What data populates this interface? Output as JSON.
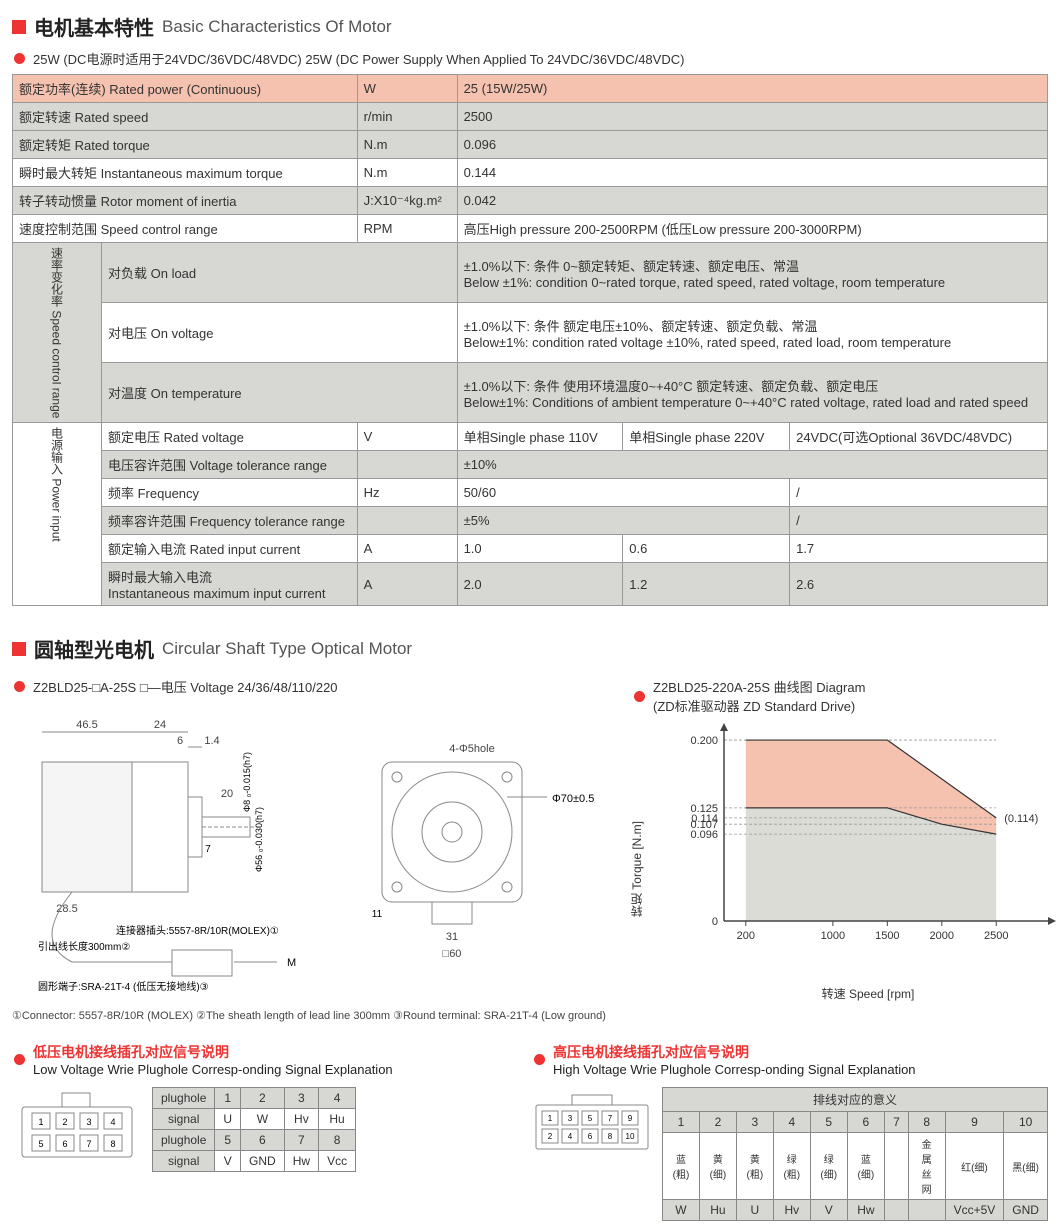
{
  "section1": {
    "title_cn": "电机基本特性",
    "title_en": "Basic Characteristics Of Motor",
    "sub": "25W (DC电源时适用于24VDC/36VDC/48VDC)   25W (DC Power Supply When Applied To 24VDC/36VDC/48VDC)",
    "rows_top": [
      {
        "label": "额定功率(连续) Rated power (Continuous)",
        "unit": "W",
        "val": "25 (15W/25W)",
        "bg": "pink"
      },
      {
        "label": "额定转速 Rated speed",
        "unit": "r/min",
        "val": "2500",
        "bg": "gray"
      },
      {
        "label": "额定转矩 Rated torque",
        "unit": "N.m",
        "val": "0.096",
        "bg": "gray"
      },
      {
        "label": "瞬时最大转矩 Instantaneous maximum torque",
        "unit": "N.m",
        "val": "0.144",
        "bg": "none"
      },
      {
        "label": "转子转动惯量 Rotor moment of inertia",
        "unit": "J:X10⁻⁴kg.m²",
        "val": "0.042",
        "bg": "gray"
      },
      {
        "label": "速度控制范围 Speed control range",
        "unit": "RPM",
        "val": "高压High pressure 200-2500RPM (低压Low pressure 200-3000RPM)",
        "bg": "none"
      }
    ],
    "speed_group_label": "速率变化率  Speed control range",
    "speed_rows": [
      {
        "cond": "对负载 On load",
        "txt": "±1.0%以下: 条件 0~额定转矩、额定转速、额定电压、常温\nBelow ±1%: condition 0~rated torque, rated speed, rated voltage, room temperature"
      },
      {
        "cond": "对电压 On voltage",
        "txt": "±1.0%以下: 条件 额定电压±10%、额定转速、额定负载、常温\nBelow±1%: condition rated voltage ±10%, rated speed, rated load, room temperature"
      },
      {
        "cond": "对温度 On temperature",
        "txt": "±1.0%以下: 条件 使用环境温度0~+40°C 额定转速、额定负载、额定电压\nBelow±1%: Conditions of ambient temperature 0~+40°C rated voltage, rated load and rated speed"
      }
    ],
    "power_group_label": "电源输入  Power input",
    "power_rows": [
      {
        "label": "额定电压 Rated voltage",
        "unit": "V",
        "v1": "单相Single phase 110V",
        "v2": "单相Single phase 220V",
        "v3": "24VDC(可选Optional 36VDC/48VDC)"
      },
      {
        "label": "电压容许范围 Voltage tolerance range",
        "unit": "",
        "colspan": 3,
        "val": "±10%"
      },
      {
        "label": "频率 Frequency",
        "unit": "Hz",
        "v12": "50/60",
        "v3": "/"
      },
      {
        "label": "频率容许范围 Frequency tolerance range",
        "unit": "",
        "v12": "±5%",
        "v3": "/"
      },
      {
        "label": "额定输入电流 Rated input current",
        "unit": "A",
        "v1": "1.0",
        "v2": "0.6",
        "v3": "1.7"
      },
      {
        "label": "瞬时最大输入电流\nInstantaneous maximum input current",
        "unit": "A",
        "v1": "2.0",
        "v2": "1.2",
        "v3": "2.6"
      }
    ]
  },
  "section2": {
    "title_cn": "圆轴型光电机",
    "title_en": "Circular Shaft Type Optical Motor",
    "model_line": "Z2BLD25-□A-25S   □—电压 Voltage 24/36/48/110/220",
    "dims": {
      "a": "46.5",
      "b": "24",
      "c": "6",
      "d": "1.4",
      "e": "20",
      "f": "28.5",
      "g": "7",
      "shaft_d": "Φ8 ₀‐0.015(h7)",
      "flange_d": "Φ56 ₀‐0.030(h7)",
      "hole": "4-Φ5hole",
      "body_d": "Φ70±0.5",
      "sq": "□60",
      "bolt": "31",
      "depth": "11",
      "conn": "连接器插头:5557-8R/10R(MOLEX)①",
      "lead": "引出线长度300mm②",
      "terminal": "圆形端子:SRA-21T-4\n(低压无接地线)③",
      "m_label": "M"
    },
    "footnotes": "①Connector: 5557-8R/10R (MOLEX)   ②The sheath length of lead line 300mm   ③Round terminal: SRA-21T-4 (Low ground)",
    "chart": {
      "title1": "Z2BLD25-220A-25S 曲线图 Diagram",
      "title2": "(ZD标准驱动器 ZD Standard Drive)",
      "ylabel": "转矩 Torque [N.m]",
      "xlabel": "转速 Speed [rpm]",
      "y_ticks": [
        "0",
        "0.096",
        "0.107",
        "0.114",
        "0.125",
        "0.200"
      ],
      "y_vals": [
        0,
        0.096,
        0.107,
        0.114,
        0.125,
        0.2
      ],
      "x_ticks": [
        "200",
        "1000",
        "1500",
        "2000",
        "2500"
      ],
      "x_vals": [
        200,
        1000,
        1500,
        2000,
        2500
      ],
      "annot": "(0.114)",
      "bg_color": "#dcdcd7",
      "upper_color": "#f5c2b0",
      "axis_color": "#444444",
      "grid_color": "#999999",
      "ymax": 0.21,
      "xmax": 2700,
      "xmin": 0,
      "series_upper": [
        [
          200,
          0.2
        ],
        [
          1500,
          0.2
        ],
        [
          2500,
          0.114
        ]
      ],
      "series_lower": [
        [
          200,
          0.125
        ],
        [
          1500,
          0.125
        ],
        [
          2000,
          0.107
        ],
        [
          2500,
          0.096
        ]
      ]
    }
  },
  "section3": {
    "low": {
      "title_cn": "低压电机接线插孔对应信号说明",
      "title_en": "Low Voltage  Wrie Plughole Corresp-onding Signal Explanation",
      "pins_top": [
        "1",
        "2",
        "3",
        "4"
      ],
      "pins_bot": [
        "5",
        "6",
        "7",
        "8"
      ],
      "rows": [
        [
          "plughole",
          "1",
          "2",
          "3",
          "4"
        ],
        [
          "signal",
          "U",
          "W",
          "Hv",
          "Hu"
        ],
        [
          "plughole",
          "5",
          "6",
          "7",
          "8"
        ],
        [
          "signal",
          "V",
          "GND",
          "Hw",
          "Vcc"
        ]
      ]
    },
    "high": {
      "title_cn": "高压电机接线插孔对应信号说明",
      "title_en": "High Voltage  Wrie Plughole Corresp-onding Signal Explanation",
      "header_top": "排线对应的意义",
      "pins_top": [
        "1",
        "3",
        "5",
        "7",
        "9"
      ],
      "pins_bot": [
        "2",
        "4",
        "6",
        "8",
        "10"
      ],
      "cols": [
        "1",
        "2",
        "3",
        "4",
        "5",
        "6",
        "7",
        "8",
        "9",
        "10"
      ],
      "row1": [
        "蓝(粗)",
        "黄(细)",
        "黄(粗)",
        "绿(粗)",
        "绿(细)",
        "蓝(细)",
        "",
        "金属丝网",
        "红(细)",
        "黑(细)"
      ],
      "row2": [
        "W",
        "Hu",
        "U",
        "Hv",
        "V",
        "Hw",
        "",
        "",
        "Vcc+5V",
        "GND"
      ]
    }
  },
  "colors": {
    "red": "#e33333",
    "pink_bg": "#f5c2b0",
    "gray_bg": "#d7d7d3"
  }
}
